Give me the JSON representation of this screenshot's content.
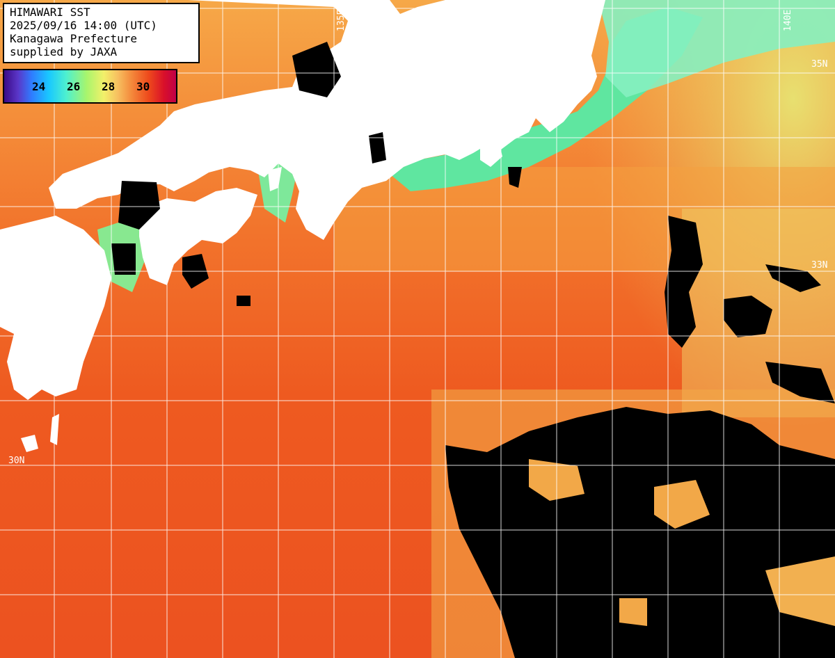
{
  "header": {
    "line1": "HIMAWARI SST",
    "line2": "2025/09/16 14:00 (UTC)",
    "line3": "Kanagawa Prefecture",
    "line4": "supplied by JAXA"
  },
  "legend": {
    "ticks": [
      "24",
      "26",
      "28",
      "30"
    ]
  },
  "grid": {
    "lat_labels": [
      "35N",
      "33N",
      "30N"
    ],
    "lon_labels": [
      "135E",
      "140E"
    ]
  },
  "colors": {
    "land": "#ffffff",
    "cloud": "#000000",
    "warm_sea": "#ee5a20",
    "mid_sea": "#f5a040",
    "cool_sea": "#e8e86a",
    "cold_coast": "#6be89a",
    "grid": "#ffffff"
  }
}
